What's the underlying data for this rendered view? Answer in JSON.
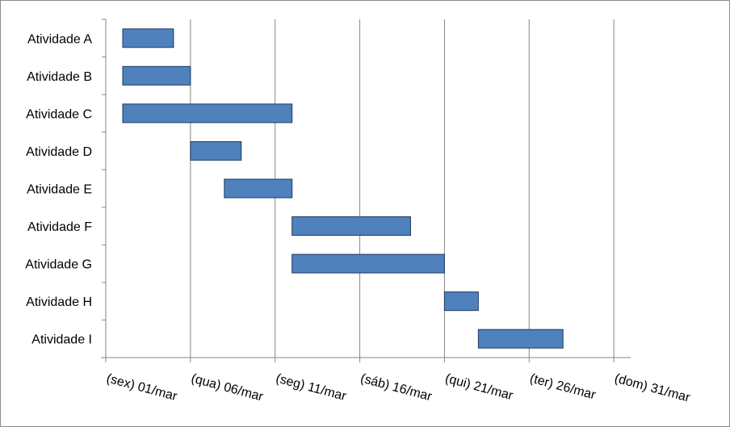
{
  "chart_data": {
    "type": "bar",
    "orientation": "horizontal-gantt",
    "categories": [
      "Atividade A",
      "Atividade B",
      "Atividade C",
      "Atividade D",
      "Atividade E",
      "Atividade F",
      "Atividade G",
      "Atividade H",
      "Atividade I"
    ],
    "series": [
      {
        "start": [
          "02/mar",
          "02/mar",
          "02/mar",
          "06/mar",
          "08/mar",
          "12/mar",
          "12/mar",
          "21/mar",
          "23/mar"
        ],
        "end": [
          "05/mar",
          "06/mar",
          "12/mar",
          "09/mar",
          "12/mar",
          "19/mar",
          "21/mar",
          "23/mar",
          "28/mar"
        ],
        "start_day": [
          2,
          2,
          2,
          6,
          8,
          12,
          12,
          21,
          23
        ],
        "end_day": [
          5,
          6,
          12,
          9,
          12,
          19,
          21,
          23,
          28
        ]
      }
    ],
    "x_tick_labels": [
      "(sex) 01/mar",
      "(qua) 06/mar",
      "(seg) 11/mar",
      "(sáb) 16/mar",
      "(qui) 21/mar",
      "(ter) 26/mar",
      "(dom) 31/mar"
    ],
    "x_tick_days": [
      1,
      6,
      11,
      16,
      21,
      26,
      31
    ],
    "xlim_days": [
      1,
      32
    ],
    "title": "",
    "xlabel": "",
    "ylabel": "",
    "grid": "vertical major gridlines",
    "legend": "none",
    "colors": {
      "bar_fill": "#4f81bd",
      "bar_stroke": "#1f3a5f",
      "grid": "#868686"
    }
  }
}
